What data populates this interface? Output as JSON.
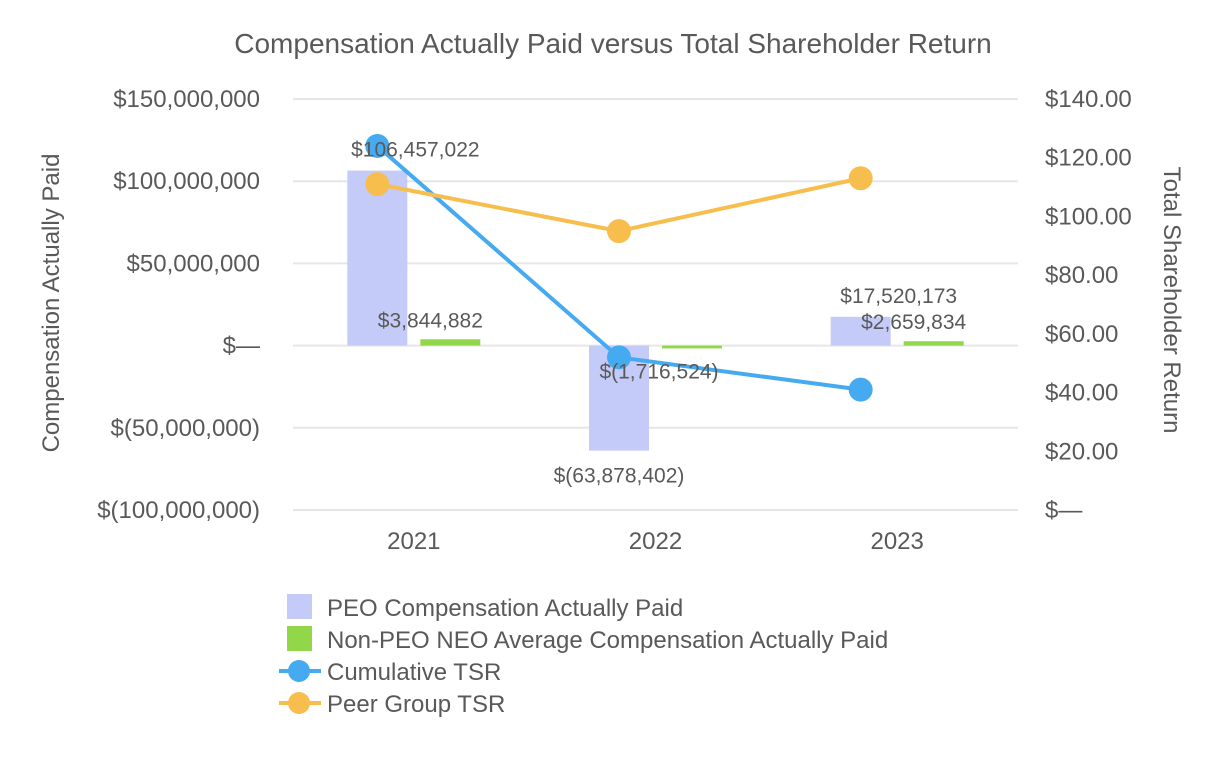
{
  "chart_data": {
    "type": "bar+line",
    "title": "Compensation Actually Paid versus Total Shareholder Return",
    "categories": [
      "2021",
      "2022",
      "2023"
    ],
    "y_left": {
      "label": "Compensation Actually Paid",
      "range": [
        -100000000,
        150000000
      ],
      "ticks": [
        150000000,
        100000000,
        50000000,
        0,
        -50000000,
        -100000000
      ],
      "tick_labels": [
        "$150,000,000",
        "$100,000,000",
        "$50,000,000",
        "$—",
        "$(50,000,000)",
        "$(100,000,000)"
      ]
    },
    "y_right": {
      "label": "Total Shareholder Return",
      "range": [
        0,
        140
      ],
      "ticks": [
        140,
        120,
        100,
        80,
        60,
        40,
        20,
        0
      ],
      "tick_labels": [
        "$140.00",
        "$120.00",
        "$100.00",
        "$80.00",
        "$60.00",
        "$40.00",
        "$20.00",
        "$—"
      ]
    },
    "series": [
      {
        "name": "PEO Compensation Actually Paid",
        "type": "bar",
        "axis": "left",
        "color": "#c5cbf8",
        "values": [
          106457022,
          -63878402,
          17520173
        ],
        "labels": [
          "$106,457,022",
          "$(63,878,402)",
          "$17,520,173"
        ]
      },
      {
        "name": "Non-PEO NEO Average Compensation Actually Paid",
        "type": "bar",
        "axis": "left",
        "color": "#92d74a",
        "values": [
          3844882,
          -1716524,
          2659834
        ],
        "labels": [
          "$3,844,882",
          "$(1,716,524)",
          "$2,659,834"
        ]
      },
      {
        "name": "Cumulative TSR",
        "type": "line",
        "axis": "right",
        "color": "#46aaf0",
        "values": [
          124.0,
          52.0,
          41.0
        ]
      },
      {
        "name": "Peer Group TSR",
        "type": "line",
        "axis": "right",
        "color": "#f7be4e",
        "values": [
          111.0,
          95.0,
          113.0
        ]
      }
    ],
    "grid": true,
    "legend_position": "bottom"
  }
}
